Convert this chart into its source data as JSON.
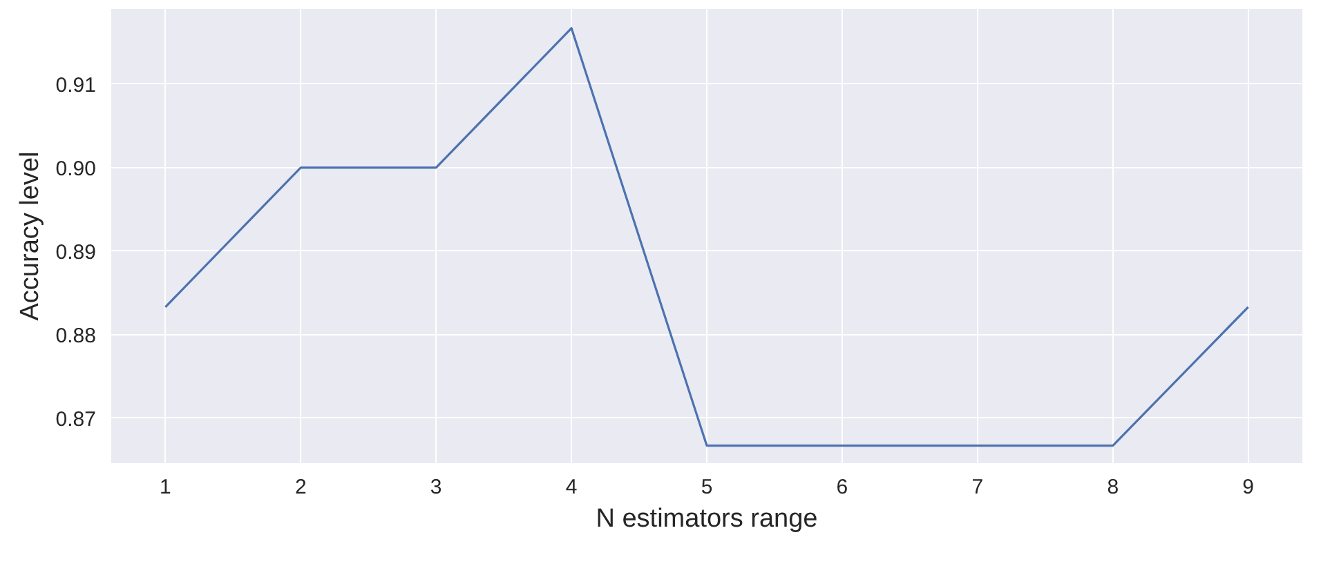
{
  "chart_data": {
    "type": "line",
    "xlabel": "N estimators range",
    "ylabel": "Accuracy level",
    "x": [
      1,
      2,
      3,
      4,
      5,
      6,
      7,
      8,
      9
    ],
    "series": [
      {
        "color": "#4c72b0",
        "values": [
          0.8833,
          0.9,
          0.9,
          0.9167,
          0.8667,
          0.8667,
          0.8667,
          0.8667,
          0.8833
        ]
      }
    ],
    "xlim": [
      0.6,
      9.4
    ],
    "ylim": [
      0.8646,
      0.919
    ],
    "xticks": [
      1,
      2,
      3,
      4,
      5,
      6,
      7,
      8,
      9
    ],
    "yticks": [
      {
        "value": 0.87,
        "label": "0.87"
      },
      {
        "value": 0.88,
        "label": "0.88"
      },
      {
        "value": 0.89,
        "label": "0.89"
      },
      {
        "value": 0.9,
        "label": "0.90"
      },
      {
        "value": 0.91,
        "label": "0.91"
      }
    ],
    "grid": true,
    "marker": "none",
    "line_style": "solid"
  }
}
